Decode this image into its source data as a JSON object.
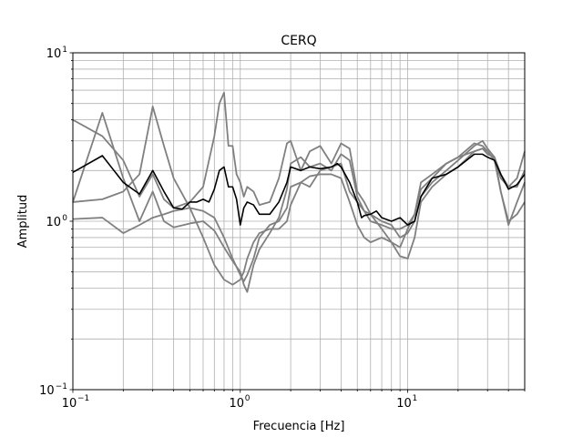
{
  "chart_data": {
    "type": "line",
    "title": "CERQ",
    "xlabel": "Frecuencia [Hz]",
    "ylabel": "Amplitud",
    "xscale": "log",
    "yscale": "log",
    "xlim": [
      0.1,
      50
    ],
    "ylim": [
      0.1,
      10
    ],
    "grid": "both-major-minor",
    "x_ticks": [
      {
        "base": "10",
        "exp": "−1",
        "value": 0.1
      },
      {
        "base": "10",
        "exp": "0",
        "value": 1
      },
      {
        "base": "10",
        "exp": "1",
        "value": 10
      }
    ],
    "y_ticks": [
      {
        "base": "10",
        "exp": "−1",
        "value": 0.1
      },
      {
        "base": "10",
        "exp": "0",
        "value": 1
      },
      {
        "base": "10",
        "exp": "1",
        "value": 10
      }
    ],
    "series": [
      {
        "color": "#808080",
        "points": [
          [
            0.1,
            4.0
          ],
          [
            0.15,
            3.2
          ],
          [
            0.2,
            2.3
          ],
          [
            0.25,
            1.4
          ],
          [
            0.3,
            1.9
          ],
          [
            0.35,
            1.35
          ],
          [
            0.4,
            1.2
          ],
          [
            0.5,
            1.3
          ],
          [
            0.6,
            1.6
          ],
          [
            0.7,
            3.2
          ],
          [
            0.75,
            5.0
          ],
          [
            0.8,
            5.8
          ],
          [
            0.85,
            2.8
          ],
          [
            0.9,
            2.8
          ],
          [
            0.95,
            1.9
          ],
          [
            1.0,
            1.7
          ],
          [
            1.05,
            1.4
          ],
          [
            1.1,
            1.6
          ],
          [
            1.2,
            1.5
          ],
          [
            1.3,
            1.25
          ],
          [
            1.5,
            1.3
          ],
          [
            1.7,
            1.8
          ],
          [
            1.9,
            2.9
          ],
          [
            2.0,
            3.0
          ],
          [
            2.3,
            2.0
          ],
          [
            2.6,
            2.6
          ],
          [
            3.0,
            2.8
          ],
          [
            3.5,
            2.2
          ],
          [
            4.0,
            2.9
          ],
          [
            4.5,
            2.7
          ],
          [
            5.0,
            1.5
          ],
          [
            5.5,
            1.3
          ],
          [
            6.0,
            1.1
          ],
          [
            7.0,
            1.0
          ],
          [
            8.0,
            0.95
          ],
          [
            9.0,
            0.8
          ],
          [
            10.0,
            0.85
          ],
          [
            11.0,
            1.0
          ],
          [
            12.0,
            1.4
          ],
          [
            14.0,
            1.7
          ],
          [
            17.0,
            2.0
          ],
          [
            20.0,
            2.3
          ],
          [
            25.0,
            2.8
          ],
          [
            28.0,
            3.0
          ],
          [
            30.0,
            2.7
          ],
          [
            33.0,
            2.4
          ],
          [
            36.0,
            1.5
          ],
          [
            40.0,
            1.0
          ],
          [
            45.0,
            1.1
          ],
          [
            50.0,
            1.3
          ]
        ]
      },
      {
        "color": "#808080",
        "points": [
          [
            0.1,
            1.3
          ],
          [
            0.15,
            4.4
          ],
          [
            0.2,
            1.8
          ],
          [
            0.25,
            1.0
          ],
          [
            0.3,
            1.5
          ],
          [
            0.35,
            1.0
          ],
          [
            0.4,
            0.92
          ],
          [
            0.5,
            0.97
          ],
          [
            0.6,
            1.0
          ],
          [
            0.7,
            0.88
          ],
          [
            0.8,
            0.7
          ],
          [
            0.9,
            0.58
          ],
          [
            1.0,
            0.5
          ],
          [
            1.05,
            0.42
          ],
          [
            1.1,
            0.38
          ],
          [
            1.2,
            0.55
          ],
          [
            1.3,
            0.68
          ],
          [
            1.5,
            0.85
          ],
          [
            1.7,
            1.05
          ],
          [
            1.9,
            1.55
          ],
          [
            2.0,
            2.2
          ],
          [
            2.3,
            2.4
          ],
          [
            2.6,
            2.1
          ],
          [
            3.0,
            2.2
          ],
          [
            3.5,
            2.0
          ],
          [
            4.0,
            2.5
          ],
          [
            4.5,
            2.3
          ],
          [
            5.0,
            1.4
          ],
          [
            5.5,
            1.15
          ],
          [
            6.0,
            1.0
          ],
          [
            7.0,
            0.95
          ],
          [
            8.0,
            0.9
          ],
          [
            9.0,
            0.9
          ],
          [
            10.0,
            0.95
          ],
          [
            11.0,
            1.1
          ],
          [
            12.0,
            1.55
          ],
          [
            14.0,
            1.8
          ],
          [
            17.0,
            2.2
          ],
          [
            20.0,
            2.4
          ],
          [
            25.0,
            2.9
          ],
          [
            28.0,
            2.8
          ],
          [
            30.0,
            2.6
          ],
          [
            33.0,
            2.3
          ],
          [
            36.0,
            1.8
          ],
          [
            40.0,
            1.6
          ],
          [
            45.0,
            1.8
          ],
          [
            50.0,
            2.6
          ]
        ]
      },
      {
        "color": "#808080",
        "points": [
          [
            0.1,
            1.03
          ],
          [
            0.15,
            1.05
          ],
          [
            0.2,
            0.85
          ],
          [
            0.25,
            0.95
          ],
          [
            0.3,
            1.05
          ],
          [
            0.35,
            1.1
          ],
          [
            0.4,
            1.15
          ],
          [
            0.5,
            1.2
          ],
          [
            0.6,
            1.15
          ],
          [
            0.7,
            1.05
          ],
          [
            0.8,
            0.8
          ],
          [
            0.9,
            0.6
          ],
          [
            1.0,
            0.48
          ],
          [
            1.05,
            0.44
          ],
          [
            1.1,
            0.48
          ],
          [
            1.2,
            0.6
          ],
          [
            1.3,
            0.8
          ],
          [
            1.5,
            0.95
          ],
          [
            1.7,
            1.0
          ],
          [
            1.9,
            1.2
          ],
          [
            2.0,
            1.6
          ],
          [
            2.3,
            1.7
          ],
          [
            2.6,
            1.85
          ],
          [
            3.0,
            1.9
          ],
          [
            3.5,
            1.9
          ],
          [
            4.0,
            1.8
          ],
          [
            4.5,
            1.3
          ],
          [
            5.0,
            0.95
          ],
          [
            5.5,
            0.8
          ],
          [
            6.0,
            0.75
          ],
          [
            7.0,
            0.8
          ],
          [
            8.0,
            0.75
          ],
          [
            9.0,
            0.62
          ],
          [
            10.0,
            0.6
          ],
          [
            11.0,
            0.8
          ],
          [
            12.0,
            1.3
          ],
          [
            14.0,
            1.6
          ],
          [
            17.0,
            1.9
          ],
          [
            20.0,
            2.1
          ],
          [
            25.0,
            2.6
          ],
          [
            28.0,
            2.7
          ],
          [
            30.0,
            2.6
          ],
          [
            33.0,
            2.3
          ],
          [
            36.0,
            1.5
          ],
          [
            40.0,
            0.95
          ],
          [
            45.0,
            1.3
          ],
          [
            50.0,
            1.7
          ]
        ]
      },
      {
        "color": "#808080",
        "points": [
          [
            0.1,
            1.3
          ],
          [
            0.15,
            1.35
          ],
          [
            0.2,
            1.5
          ],
          [
            0.25,
            1.9
          ],
          [
            0.3,
            4.8
          ],
          [
            0.35,
            2.8
          ],
          [
            0.4,
            1.8
          ],
          [
            0.5,
            1.2
          ],
          [
            0.6,
            0.8
          ],
          [
            0.7,
            0.55
          ],
          [
            0.8,
            0.45
          ],
          [
            0.9,
            0.42
          ],
          [
            1.0,
            0.45
          ],
          [
            1.05,
            0.5
          ],
          [
            1.1,
            0.6
          ],
          [
            1.2,
            0.75
          ],
          [
            1.3,
            0.85
          ],
          [
            1.5,
            0.9
          ],
          [
            1.7,
            0.9
          ],
          [
            1.9,
            1.0
          ],
          [
            2.0,
            1.25
          ],
          [
            2.3,
            1.7
          ],
          [
            2.6,
            1.6
          ],
          [
            3.0,
            2.0
          ],
          [
            3.5,
            2.1
          ],
          [
            4.0,
            2.2
          ],
          [
            4.5,
            1.5
          ],
          [
            5.0,
            1.3
          ],
          [
            5.5,
            1.15
          ],
          [
            6.0,
            1.1
          ],
          [
            7.0,
            0.9
          ],
          [
            8.0,
            0.75
          ],
          [
            9.0,
            0.7
          ],
          [
            10.0,
            0.9
          ],
          [
            11.0,
            1.1
          ],
          [
            12.0,
            1.7
          ],
          [
            14.0,
            1.9
          ],
          [
            17.0,
            2.2
          ],
          [
            20.0,
            2.4
          ],
          [
            25.0,
            2.6
          ],
          [
            28.0,
            2.7
          ],
          [
            30.0,
            2.5
          ],
          [
            33.0,
            2.4
          ],
          [
            36.0,
            1.9
          ],
          [
            40.0,
            1.6
          ],
          [
            45.0,
            1.6
          ],
          [
            50.0,
            2.0
          ]
        ]
      },
      {
        "color": "#000000",
        "points": [
          [
            0.1,
            1.95
          ],
          [
            0.15,
            2.45
          ],
          [
            0.2,
            1.7
          ],
          [
            0.25,
            1.45
          ],
          [
            0.3,
            2.0
          ],
          [
            0.35,
            1.5
          ],
          [
            0.4,
            1.2
          ],
          [
            0.45,
            1.18
          ],
          [
            0.5,
            1.3
          ],
          [
            0.55,
            1.3
          ],
          [
            0.6,
            1.35
          ],
          [
            0.65,
            1.3
          ],
          [
            0.7,
            1.55
          ],
          [
            0.75,
            2.0
          ],
          [
            0.8,
            2.1
          ],
          [
            0.85,
            1.6
          ],
          [
            0.9,
            1.6
          ],
          [
            0.95,
            1.35
          ],
          [
            1.0,
            0.95
          ],
          [
            1.05,
            1.2
          ],
          [
            1.1,
            1.3
          ],
          [
            1.2,
            1.25
          ],
          [
            1.3,
            1.1
          ],
          [
            1.5,
            1.1
          ],
          [
            1.7,
            1.3
          ],
          [
            1.9,
            1.7
          ],
          [
            2.0,
            2.1
          ],
          [
            2.3,
            2.0
          ],
          [
            2.6,
            2.1
          ],
          [
            3.0,
            2.05
          ],
          [
            3.5,
            2.1
          ],
          [
            3.8,
            2.2
          ],
          [
            4.0,
            2.1
          ],
          [
            4.5,
            1.7
          ],
          [
            5.0,
            1.3
          ],
          [
            5.3,
            1.05
          ],
          [
            5.5,
            1.08
          ],
          [
            6.0,
            1.1
          ],
          [
            6.5,
            1.15
          ],
          [
            7.0,
            1.05
          ],
          [
            8.0,
            1.0
          ],
          [
            9.0,
            1.05
          ],
          [
            10.0,
            0.95
          ],
          [
            11.0,
            1.0
          ],
          [
            12.0,
            1.4
          ],
          [
            14.0,
            1.8
          ],
          [
            17.0,
            1.9
          ],
          [
            20.0,
            2.1
          ],
          [
            25.0,
            2.5
          ],
          [
            28.0,
            2.5
          ],
          [
            30.0,
            2.4
          ],
          [
            33.0,
            2.3
          ],
          [
            36.0,
            1.9
          ],
          [
            40.0,
            1.55
          ],
          [
            45.0,
            1.65
          ],
          [
            48.0,
            1.8
          ],
          [
            50.0,
            1.9
          ]
        ]
      }
    ]
  }
}
